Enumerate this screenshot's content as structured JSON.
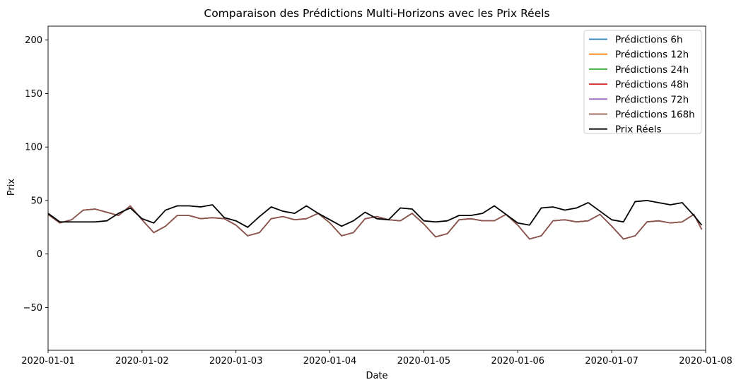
{
  "chart_data": {
    "type": "line",
    "title": "Comparaison des Prédictions Multi-Horizons avec les Prix Réels",
    "xlabel": "Date",
    "ylabel": "Prix",
    "xlim": [
      "2020-01-01T00:00",
      "2020-01-08T00:00"
    ],
    "ylim": [
      -90,
      213
    ],
    "x_ticks": [
      "2020-01-01",
      "2020-01-02",
      "2020-01-03",
      "2020-01-04",
      "2020-01-05",
      "2020-01-06",
      "2020-01-07",
      "2020-01-08"
    ],
    "y_ticks": [
      -50,
      0,
      50,
      100,
      150,
      200
    ],
    "y_tick_labels": [
      "−50",
      "0",
      "50",
      "100",
      "150",
      "200"
    ],
    "grid": false,
    "legend_position": "upper right",
    "series": [
      {
        "name": "Prédictions 6h",
        "color": "#1f77b4",
        "x": [
          "2020-01-01T00:00",
          "2020-01-01T03:00",
          "2020-01-01T06:00",
          "2020-01-01T09:00",
          "2020-01-01T12:00",
          "2020-01-01T15:00",
          "2020-01-01T18:00",
          "2020-01-01T21:00",
          "2020-01-02T00:00",
          "2020-01-02T03:00",
          "2020-01-02T06:00",
          "2020-01-02T09:00",
          "2020-01-02T12:00",
          "2020-01-02T15:00",
          "2020-01-02T18:00",
          "2020-01-02T21:00",
          "2020-01-03T00:00",
          "2020-01-03T03:00",
          "2020-01-03T06:00",
          "2020-01-03T09:00",
          "2020-01-03T12:00",
          "2020-01-03T15:00",
          "2020-01-03T18:00",
          "2020-01-03T21:00",
          "2020-01-04T00:00",
          "2020-01-04T03:00",
          "2020-01-04T06:00",
          "2020-01-04T09:00",
          "2020-01-04T12:00",
          "2020-01-04T15:00",
          "2020-01-04T18:00",
          "2020-01-04T21:00",
          "2020-01-05T00:00",
          "2020-01-05T03:00",
          "2020-01-05T06:00",
          "2020-01-05T09:00",
          "2020-01-05T12:00",
          "2020-01-05T15:00",
          "2020-01-05T18:00",
          "2020-01-05T21:00",
          "2020-01-06T00:00",
          "2020-01-06T03:00",
          "2020-01-06T06:00",
          "2020-01-06T09:00",
          "2020-01-06T12:00",
          "2020-01-06T15:00",
          "2020-01-06T18:00",
          "2020-01-06T21:00",
          "2020-01-07T00:00",
          "2020-01-07T03:00",
          "2020-01-07T06:00",
          "2020-01-07T09:00",
          "2020-01-07T12:00",
          "2020-01-07T15:00",
          "2020-01-07T18:00",
          "2020-01-07T21:00",
          "2020-01-07T23:00"
        ],
        "y": [
          37,
          29,
          32,
          41,
          42,
          39,
          36,
          45,
          32,
          20,
          26,
          36,
          36,
          33,
          34,
          33,
          27,
          17,
          20,
          33,
          35,
          32,
          33,
          38,
          29,
          17,
          20,
          33,
          35,
          32,
          31,
          38,
          28,
          16,
          19,
          32,
          33,
          31,
          31,
          37,
          27,
          14,
          17,
          31,
          32,
          30,
          31,
          37,
          26,
          14,
          17,
          30,
          31,
          29,
          30,
          37,
          23
        ]
      },
      {
        "name": "Prédictions 12h",
        "color": "#ff7f0e",
        "x": [
          "2020-01-01T00:00",
          "2020-01-01T03:00",
          "2020-01-01T06:00",
          "2020-01-01T09:00",
          "2020-01-01T12:00",
          "2020-01-01T15:00",
          "2020-01-01T18:00",
          "2020-01-01T21:00",
          "2020-01-02T00:00",
          "2020-01-02T03:00",
          "2020-01-02T06:00",
          "2020-01-02T09:00",
          "2020-01-02T12:00",
          "2020-01-02T15:00",
          "2020-01-02T18:00",
          "2020-01-02T21:00",
          "2020-01-03T00:00",
          "2020-01-03T03:00",
          "2020-01-03T06:00",
          "2020-01-03T09:00",
          "2020-01-03T12:00",
          "2020-01-03T15:00",
          "2020-01-03T18:00",
          "2020-01-03T21:00",
          "2020-01-04T00:00",
          "2020-01-04T03:00",
          "2020-01-04T06:00",
          "2020-01-04T09:00",
          "2020-01-04T12:00",
          "2020-01-04T15:00",
          "2020-01-04T18:00",
          "2020-01-04T21:00",
          "2020-01-05T00:00",
          "2020-01-05T03:00",
          "2020-01-05T06:00",
          "2020-01-05T09:00",
          "2020-01-05T12:00",
          "2020-01-05T15:00",
          "2020-01-05T18:00",
          "2020-01-05T21:00",
          "2020-01-06T00:00",
          "2020-01-06T03:00",
          "2020-01-06T06:00",
          "2020-01-06T09:00",
          "2020-01-06T12:00",
          "2020-01-06T15:00",
          "2020-01-06T18:00",
          "2020-01-06T21:00",
          "2020-01-07T00:00",
          "2020-01-07T03:00",
          "2020-01-07T06:00",
          "2020-01-07T09:00",
          "2020-01-07T12:00",
          "2020-01-07T15:00",
          "2020-01-07T18:00",
          "2020-01-07T21:00",
          "2020-01-07T23:00"
        ],
        "y": [
          37,
          29,
          32,
          41,
          42,
          39,
          36,
          45,
          32,
          20,
          26,
          36,
          36,
          33,
          34,
          33,
          27,
          17,
          20,
          33,
          35,
          32,
          33,
          38,
          29,
          17,
          20,
          33,
          35,
          32,
          31,
          38,
          28,
          16,
          19,
          32,
          33,
          31,
          31,
          37,
          27,
          14,
          17,
          31,
          32,
          30,
          31,
          37,
          26,
          14,
          17,
          30,
          31,
          29,
          30,
          37,
          23
        ]
      },
      {
        "name": "Prédictions 24h",
        "color": "#2ca02c",
        "x": [
          "2020-01-01T00:00",
          "2020-01-01T03:00",
          "2020-01-01T06:00",
          "2020-01-01T09:00",
          "2020-01-01T12:00",
          "2020-01-01T15:00",
          "2020-01-01T18:00",
          "2020-01-01T21:00",
          "2020-01-02T00:00",
          "2020-01-02T03:00",
          "2020-01-02T06:00",
          "2020-01-02T09:00",
          "2020-01-02T12:00",
          "2020-01-02T15:00",
          "2020-01-02T18:00",
          "2020-01-02T21:00",
          "2020-01-03T00:00",
          "2020-01-03T03:00",
          "2020-01-03T06:00",
          "2020-01-03T09:00",
          "2020-01-03T12:00",
          "2020-01-03T15:00",
          "2020-01-03T18:00",
          "2020-01-03T21:00",
          "2020-01-04T00:00",
          "2020-01-04T03:00",
          "2020-01-04T06:00",
          "2020-01-04T09:00",
          "2020-01-04T12:00",
          "2020-01-04T15:00",
          "2020-01-04T18:00",
          "2020-01-04T21:00",
          "2020-01-05T00:00",
          "2020-01-05T03:00",
          "2020-01-05T06:00",
          "2020-01-05T09:00",
          "2020-01-05T12:00",
          "2020-01-05T15:00",
          "2020-01-05T18:00",
          "2020-01-05T21:00",
          "2020-01-06T00:00",
          "2020-01-06T03:00",
          "2020-01-06T06:00",
          "2020-01-06T09:00",
          "2020-01-06T12:00",
          "2020-01-06T15:00",
          "2020-01-06T18:00",
          "2020-01-06T21:00",
          "2020-01-07T00:00",
          "2020-01-07T03:00",
          "2020-01-07T06:00",
          "2020-01-07T09:00",
          "2020-01-07T12:00",
          "2020-01-07T15:00",
          "2020-01-07T18:00",
          "2020-01-07T21:00",
          "2020-01-07T23:00"
        ],
        "y": [
          37,
          29,
          32,
          41,
          42,
          39,
          36,
          45,
          32,
          20,
          26,
          36,
          36,
          33,
          34,
          33,
          27,
          17,
          20,
          33,
          35,
          32,
          33,
          38,
          29,
          17,
          20,
          33,
          35,
          32,
          31,
          38,
          28,
          16,
          19,
          32,
          33,
          31,
          31,
          37,
          27,
          14,
          17,
          31,
          32,
          30,
          31,
          37,
          26,
          14,
          17,
          30,
          31,
          29,
          30,
          37,
          23
        ]
      },
      {
        "name": "Prédictions 48h",
        "color": "#d62728",
        "x": [
          "2020-01-01T00:00",
          "2020-01-01T03:00",
          "2020-01-01T06:00",
          "2020-01-01T09:00",
          "2020-01-01T12:00",
          "2020-01-01T15:00",
          "2020-01-01T18:00",
          "2020-01-01T21:00",
          "2020-01-02T00:00",
          "2020-01-02T03:00",
          "2020-01-02T06:00",
          "2020-01-02T09:00",
          "2020-01-02T12:00",
          "2020-01-02T15:00",
          "2020-01-02T18:00",
          "2020-01-02T21:00",
          "2020-01-03T00:00",
          "2020-01-03T03:00",
          "2020-01-03T06:00",
          "2020-01-03T09:00",
          "2020-01-03T12:00",
          "2020-01-03T15:00",
          "2020-01-03T18:00",
          "2020-01-03T21:00",
          "2020-01-04T00:00",
          "2020-01-04T03:00",
          "2020-01-04T06:00",
          "2020-01-04T09:00",
          "2020-01-04T12:00",
          "2020-01-04T15:00",
          "2020-01-04T18:00",
          "2020-01-04T21:00",
          "2020-01-05T00:00",
          "2020-01-05T03:00",
          "2020-01-05T06:00",
          "2020-01-05T09:00",
          "2020-01-05T12:00",
          "2020-01-05T15:00",
          "2020-01-05T18:00",
          "2020-01-05T21:00",
          "2020-01-06T00:00",
          "2020-01-06T03:00",
          "2020-01-06T06:00",
          "2020-01-06T09:00",
          "2020-01-06T12:00",
          "2020-01-06T15:00",
          "2020-01-06T18:00",
          "2020-01-06T21:00",
          "2020-01-07T00:00",
          "2020-01-07T03:00",
          "2020-01-07T06:00",
          "2020-01-07T09:00",
          "2020-01-07T12:00",
          "2020-01-07T15:00",
          "2020-01-07T18:00",
          "2020-01-07T21:00",
          "2020-01-07T23:00"
        ],
        "y": [
          37,
          29,
          32,
          41,
          42,
          39,
          36,
          45,
          32,
          20,
          26,
          36,
          36,
          33,
          34,
          33,
          27,
          17,
          20,
          33,
          35,
          32,
          33,
          38,
          29,
          17,
          20,
          33,
          35,
          32,
          31,
          38,
          28,
          16,
          19,
          32,
          33,
          31,
          31,
          37,
          27,
          14,
          17,
          31,
          32,
          30,
          31,
          37,
          26,
          14,
          17,
          30,
          31,
          29,
          30,
          37,
          23
        ]
      },
      {
        "name": "Prédictions 72h",
        "color": "#9467bd",
        "x": [
          "2020-01-01T00:00",
          "2020-01-01T03:00",
          "2020-01-01T06:00",
          "2020-01-01T09:00",
          "2020-01-01T12:00",
          "2020-01-01T15:00",
          "2020-01-01T18:00",
          "2020-01-01T21:00",
          "2020-01-02T00:00",
          "2020-01-02T03:00",
          "2020-01-02T06:00",
          "2020-01-02T09:00",
          "2020-01-02T12:00",
          "2020-01-02T15:00",
          "2020-01-02T18:00",
          "2020-01-02T21:00",
          "2020-01-03T00:00",
          "2020-01-03T03:00",
          "2020-01-03T06:00",
          "2020-01-03T09:00",
          "2020-01-03T12:00",
          "2020-01-03T15:00",
          "2020-01-03T18:00",
          "2020-01-03T21:00",
          "2020-01-04T00:00",
          "2020-01-04T03:00",
          "2020-01-04T06:00",
          "2020-01-04T09:00",
          "2020-01-04T12:00",
          "2020-01-04T15:00",
          "2020-01-04T18:00",
          "2020-01-04T21:00",
          "2020-01-05T00:00",
          "2020-01-05T03:00",
          "2020-01-05T06:00",
          "2020-01-05T09:00",
          "2020-01-05T12:00",
          "2020-01-05T15:00",
          "2020-01-05T18:00",
          "2020-01-05T21:00",
          "2020-01-06T00:00",
          "2020-01-06T03:00",
          "2020-01-06T06:00",
          "2020-01-06T09:00",
          "2020-01-06T12:00",
          "2020-01-06T15:00",
          "2020-01-06T18:00",
          "2020-01-06T21:00",
          "2020-01-07T00:00",
          "2020-01-07T03:00",
          "2020-01-07T06:00",
          "2020-01-07T09:00",
          "2020-01-07T12:00",
          "2020-01-07T15:00",
          "2020-01-07T18:00",
          "2020-01-07T21:00",
          "2020-01-07T23:00"
        ],
        "y": [
          37,
          29,
          32,
          41,
          42,
          39,
          36,
          45,
          32,
          20,
          26,
          36,
          36,
          33,
          34,
          33,
          27,
          17,
          20,
          33,
          35,
          32,
          33,
          38,
          29,
          17,
          20,
          33,
          35,
          32,
          31,
          38,
          28,
          16,
          19,
          32,
          33,
          31,
          31,
          37,
          27,
          14,
          17,
          31,
          32,
          30,
          31,
          37,
          26,
          14,
          17,
          30,
          31,
          29,
          30,
          37,
          23
        ]
      },
      {
        "name": "Prédictions 168h",
        "color": "#8c564b",
        "x": [
          "2020-01-01T00:00",
          "2020-01-01T03:00",
          "2020-01-01T06:00",
          "2020-01-01T09:00",
          "2020-01-01T12:00",
          "2020-01-01T15:00",
          "2020-01-01T18:00",
          "2020-01-01T21:00",
          "2020-01-02T00:00",
          "2020-01-02T03:00",
          "2020-01-02T06:00",
          "2020-01-02T09:00",
          "2020-01-02T12:00",
          "2020-01-02T15:00",
          "2020-01-02T18:00",
          "2020-01-02T21:00",
          "2020-01-03T00:00",
          "2020-01-03T03:00",
          "2020-01-03T06:00",
          "2020-01-03T09:00",
          "2020-01-03T12:00",
          "2020-01-03T15:00",
          "2020-01-03T18:00",
          "2020-01-03T21:00",
          "2020-01-04T00:00",
          "2020-01-04T03:00",
          "2020-01-04T06:00",
          "2020-01-04T09:00",
          "2020-01-04T12:00",
          "2020-01-04T15:00",
          "2020-01-04T18:00",
          "2020-01-04T21:00",
          "2020-01-05T00:00",
          "2020-01-05T03:00",
          "2020-01-05T06:00",
          "2020-01-05T09:00",
          "2020-01-05T12:00",
          "2020-01-05T15:00",
          "2020-01-05T18:00",
          "2020-01-05T21:00",
          "2020-01-06T00:00",
          "2020-01-06T03:00",
          "2020-01-06T06:00",
          "2020-01-06T09:00",
          "2020-01-06T12:00",
          "2020-01-06T15:00",
          "2020-01-06T18:00",
          "2020-01-06T21:00",
          "2020-01-07T00:00",
          "2020-01-07T03:00",
          "2020-01-07T06:00",
          "2020-01-07T09:00",
          "2020-01-07T12:00",
          "2020-01-07T15:00",
          "2020-01-07T18:00",
          "2020-01-07T21:00",
          "2020-01-07T23:00"
        ],
        "y": [
          37,
          29,
          32,
          41,
          42,
          39,
          36,
          45,
          32,
          20,
          26,
          36,
          36,
          33,
          34,
          33,
          27,
          17,
          20,
          33,
          35,
          32,
          33,
          38,
          29,
          17,
          20,
          33,
          35,
          32,
          31,
          38,
          28,
          16,
          19,
          32,
          33,
          31,
          31,
          37,
          27,
          14,
          17,
          31,
          32,
          30,
          31,
          37,
          26,
          14,
          17,
          30,
          31,
          29,
          30,
          37,
          23
        ]
      },
      {
        "name": "Prix Réels",
        "color": "#000000",
        "x": [
          "2020-01-01T00:00",
          "2020-01-01T03:00",
          "2020-01-01T06:00",
          "2020-01-01T09:00",
          "2020-01-01T12:00",
          "2020-01-01T15:00",
          "2020-01-01T18:00",
          "2020-01-01T21:00",
          "2020-01-02T00:00",
          "2020-01-02T03:00",
          "2020-01-02T06:00",
          "2020-01-02T09:00",
          "2020-01-02T12:00",
          "2020-01-02T15:00",
          "2020-01-02T18:00",
          "2020-01-02T21:00",
          "2020-01-03T00:00",
          "2020-01-03T03:00",
          "2020-01-03T06:00",
          "2020-01-03T09:00",
          "2020-01-03T12:00",
          "2020-01-03T15:00",
          "2020-01-03T18:00",
          "2020-01-03T21:00",
          "2020-01-04T00:00",
          "2020-01-04T03:00",
          "2020-01-04T06:00",
          "2020-01-04T09:00",
          "2020-01-04T12:00",
          "2020-01-04T15:00",
          "2020-01-04T18:00",
          "2020-01-04T21:00",
          "2020-01-05T00:00",
          "2020-01-05T03:00",
          "2020-01-05T06:00",
          "2020-01-05T09:00",
          "2020-01-05T12:00",
          "2020-01-05T15:00",
          "2020-01-05T18:00",
          "2020-01-05T21:00",
          "2020-01-06T00:00",
          "2020-01-06T03:00",
          "2020-01-06T06:00",
          "2020-01-06T09:00",
          "2020-01-06T12:00",
          "2020-01-06T15:00",
          "2020-01-06T18:00",
          "2020-01-06T21:00",
          "2020-01-07T00:00",
          "2020-01-07T03:00",
          "2020-01-07T06:00",
          "2020-01-07T09:00",
          "2020-01-07T12:00",
          "2020-01-07T15:00",
          "2020-01-07T18:00",
          "2020-01-07T21:00",
          "2020-01-07T23:00"
        ],
        "y": [
          38,
          30,
          30,
          30,
          30,
          31,
          38,
          43,
          33,
          29,
          41,
          45,
          45,
          44,
          46,
          34,
          31,
          25,
          35,
          44,
          40,
          38,
          45,
          38,
          32,
          26,
          31,
          39,
          33,
          32,
          43,
          42,
          31,
          30,
          31,
          36,
          36,
          38,
          45,
          37,
          29,
          27,
          43,
          44,
          41,
          43,
          48,
          40,
          32,
          30,
          49,
          50,
          48,
          46,
          48,
          36,
          27
        ]
      }
    ]
  }
}
